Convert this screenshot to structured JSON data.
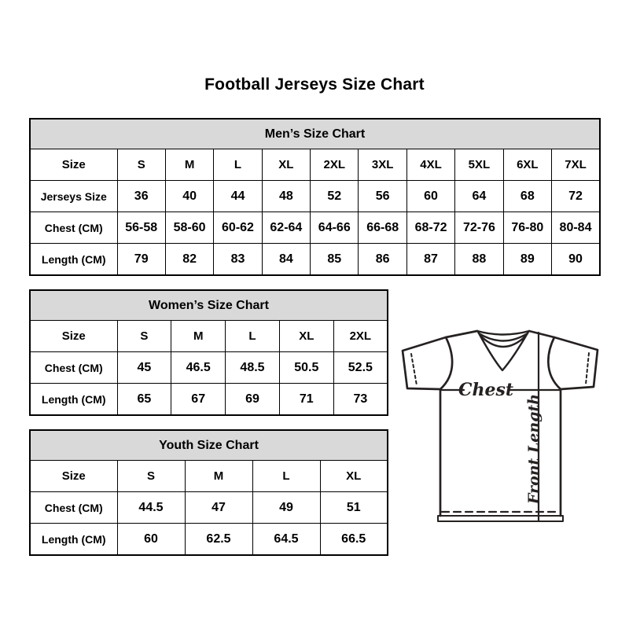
{
  "title": "Football Jerseys Size Chart",
  "tables": [
    {
      "id": "mens",
      "header": "Men’s Size Chart",
      "columns": [
        "Size",
        "S",
        "M",
        "L",
        "XL",
        "2XL",
        "3XL",
        "4XL",
        "5XL",
        "6XL",
        "7XL"
      ],
      "rows": [
        {
          "label": "Jerseys Size",
          "values": [
            "36",
            "40",
            "44",
            "48",
            "52",
            "56",
            "60",
            "64",
            "68",
            "72"
          ]
        },
        {
          "label": "Chest (CM)",
          "values": [
            "56-58",
            "58-60",
            "60-62",
            "62-64",
            "64-66",
            "66-68",
            "68-72",
            "72-76",
            "76-80",
            "80-84"
          ]
        },
        {
          "label": "Length (CM)",
          "values": [
            "79",
            "82",
            "83",
            "84",
            "85",
            "86",
            "87",
            "88",
            "89",
            "90"
          ]
        }
      ]
    },
    {
      "id": "womens",
      "header": "Women’s Size Chart",
      "columns": [
        "Size",
        "S",
        "M",
        "L",
        "XL",
        "2XL"
      ],
      "rows": [
        {
          "label": "Chest (CM)",
          "values": [
            "45",
            "46.5",
            "48.5",
            "50.5",
            "52.5"
          ]
        },
        {
          "label": "Length (CM)",
          "values": [
            "65",
            "67",
            "69",
            "71",
            "73"
          ]
        }
      ]
    },
    {
      "id": "youth",
      "header": "Youth Size Chart",
      "columns": [
        "Size",
        "S",
        "M",
        "L",
        "XL"
      ],
      "rows": [
        {
          "label": "Chest (CM)",
          "values": [
            "44.5",
            "47",
            "49",
            "51"
          ]
        },
        {
          "label": "Length (CM)",
          "values": [
            "60",
            "62.5",
            "64.5",
            "66.5"
          ]
        }
      ]
    }
  ],
  "diagram": {
    "chest_label": "Chest",
    "front_length_label": "Front Length"
  },
  "colors": {
    "header_bg": "#d9d9d9",
    "border": "#000000",
    "text": "#000000",
    "diagram_line": "#262121"
  }
}
